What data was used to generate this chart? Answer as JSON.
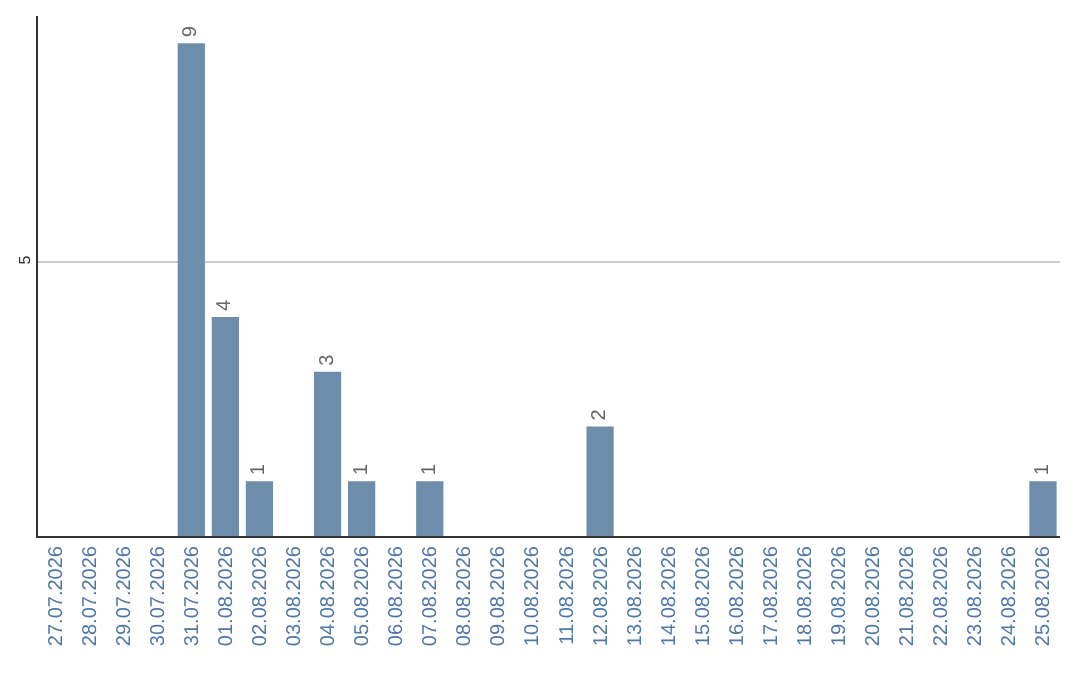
{
  "chart_data": {
    "type": "bar",
    "categories": [
      "27.07.2026",
      "28.07.2026",
      "29.07.2026",
      "30.07.2026",
      "31.07.2026",
      "01.08.2026",
      "02.08.2026",
      "03.08.2026",
      "04.08.2026",
      "05.08.2026",
      "06.08.2026",
      "07.08.2026",
      "08.08.2026",
      "09.08.2026",
      "10.08.2026",
      "11.08.2026",
      "12.08.2026",
      "13.08.2026",
      "14.08.2026",
      "15.08.2026",
      "16.08.2026",
      "17.08.2026",
      "18.08.2026",
      "19.08.2026",
      "20.08.2026",
      "21.08.2026",
      "22.08.2026",
      "23.08.2026",
      "24.08.2026",
      "25.08.2026"
    ],
    "values": [
      0,
      0,
      0,
      0,
      9,
      4,
      1,
      0,
      3,
      1,
      0,
      1,
      0,
      0,
      0,
      0,
      2,
      0,
      0,
      0,
      0,
      0,
      0,
      0,
      0,
      0,
      0,
      0,
      0,
      1
    ],
    "value_labels": [
      null,
      null,
      null,
      null,
      "9",
      "4",
      "1",
      null,
      "3",
      "1",
      null,
      "1",
      null,
      null,
      null,
      null,
      "2",
      null,
      null,
      null,
      null,
      null,
      null,
      null,
      null,
      null,
      null,
      null,
      null,
      "1"
    ],
    "color": "#6e8dab",
    "ylim": [
      0,
      9.5
    ],
    "yticks": [
      5
    ],
    "grid": "y",
    "legend": false
  }
}
